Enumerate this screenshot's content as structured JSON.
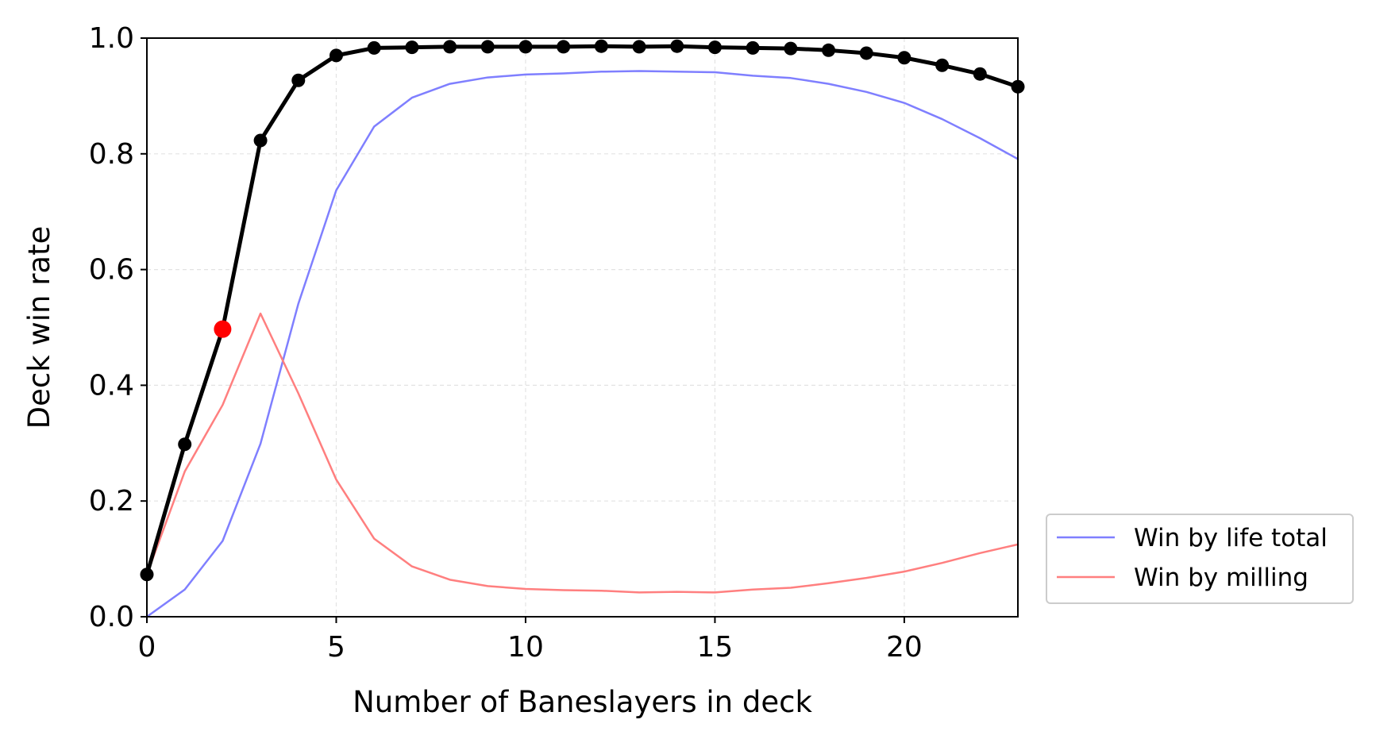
{
  "chart_data": {
    "type": "line",
    "title": "",
    "xlabel": "Number of Baneslayers in deck",
    "ylabel": "Deck win rate",
    "xlim": [
      0,
      23
    ],
    "ylim": [
      0,
      1.0
    ],
    "x_ticks": [
      0,
      5,
      10,
      15,
      20
    ],
    "x_tick_labels": [
      "0",
      "5",
      "10",
      "15",
      "20"
    ],
    "y_ticks": [
      0,
      0.2,
      0.4,
      0.6,
      0.8,
      1.0
    ],
    "y_tick_labels": [
      "0.0",
      "0.2",
      "0.4",
      "0.6",
      "0.8",
      "1.0"
    ],
    "grid": true,
    "legend_position": "outside-bottom-right",
    "x": [
      0,
      1,
      2,
      3,
      4,
      5,
      6,
      7,
      8,
      9,
      10,
      11,
      12,
      13,
      14,
      15,
      16,
      17,
      18,
      19,
      20,
      21,
      22,
      23
    ],
    "series": [
      {
        "name": "",
        "color": "#000000",
        "style": "line-with-markers",
        "values": [
          0.073,
          0.298,
          0.497,
          0.823,
          0.927,
          0.97,
          0.983,
          0.984,
          0.985,
          0.985,
          0.985,
          0.985,
          0.986,
          0.985,
          0.986,
          0.984,
          0.983,
          0.982,
          0.979,
          0.974,
          0.966,
          0.953,
          0.938,
          0.916
        ]
      },
      {
        "name": "Win by life total",
        "color": "#7f7fff",
        "style": "line",
        "values": [
          0.0,
          0.047,
          0.131,
          0.299,
          0.541,
          0.737,
          0.847,
          0.897,
          0.921,
          0.932,
          0.937,
          0.939,
          0.942,
          0.943,
          0.942,
          0.941,
          0.935,
          0.931,
          0.921,
          0.907,
          0.888,
          0.86,
          0.827,
          0.791
        ]
      },
      {
        "name": "Win by milling",
        "color": "#ff7f7f",
        "style": "line",
        "values": [
          0.073,
          0.251,
          0.366,
          0.524,
          0.386,
          0.237,
          0.135,
          0.087,
          0.064,
          0.053,
          0.048,
          0.046,
          0.045,
          0.042,
          0.043,
          0.042,
          0.047,
          0.05,
          0.058,
          0.067,
          0.078,
          0.093,
          0.11,
          0.125
        ]
      }
    ],
    "highlight_point": {
      "x": 2,
      "y": 0.497,
      "color": "#ff0000"
    }
  }
}
